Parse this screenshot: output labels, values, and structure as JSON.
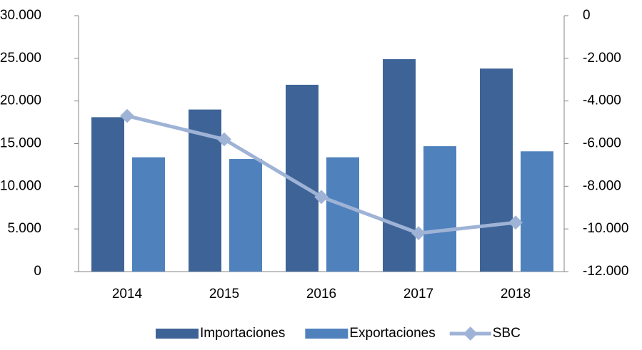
{
  "chart_data": {
    "type": "bar-line",
    "categories": [
      "2014",
      "2015",
      "2016",
      "2017",
      "2018"
    ],
    "series": [
      {
        "name": "Importaciones",
        "color": "#3e6497",
        "values": [
          18100,
          19000,
          21900,
          24900,
          23800
        ]
      },
      {
        "name": "Exportaciones",
        "color": "#4f81bd",
        "values": [
          13400,
          13200,
          13400,
          14700,
          14100
        ]
      },
      {
        "name": "SBC",
        "color": "#9fb3d6",
        "axis": "y2",
        "values": [
          -4700,
          -5800,
          -8500,
          -10200,
          -9700
        ]
      }
    ],
    "ylim": [
      0,
      30000
    ],
    "yticks": [
      0,
      {
        "value": 5000,
        "label": "5.000"
      },
      {
        "value": 10000,
        "label": "10.000"
      },
      {
        "value": 15000,
        "label": "15.000"
      },
      {
        "value": 20000,
        "label": "20.000"
      },
      {
        "value": 25000,
        "label": "25.000"
      },
      {
        "value": 30000,
        "label": "30.000"
      }
    ],
    "y2lim": [
      -12000,
      0
    ],
    "y2ticks": [
      {
        "value": -12000,
        "label": "-12.000"
      },
      {
        "value": -10000,
        "label": "-10.000"
      },
      {
        "value": -8000,
        "label": "-8.000"
      },
      {
        "value": -6000,
        "label": "-6.000"
      },
      {
        "value": -4000,
        "label": "-4.000"
      },
      {
        "value": -2000,
        "label": "-2.000"
      },
      0
    ],
    "legend": "bottom"
  }
}
